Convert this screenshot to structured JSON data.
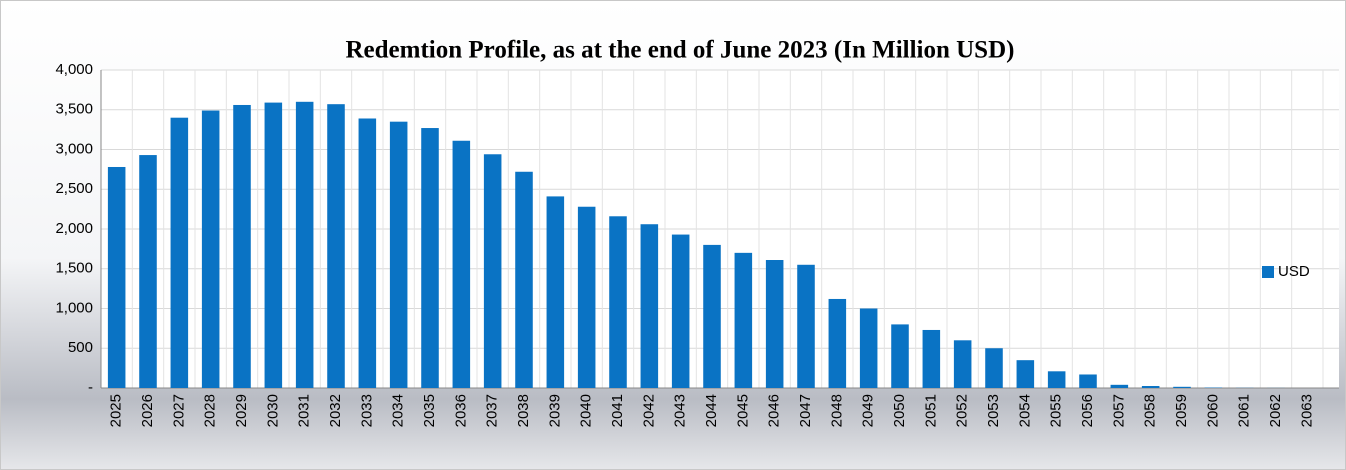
{
  "chart_data": {
    "type": "bar",
    "title": "Redemtion Profile, as at the end of June 2023 (In Million USD)",
    "categories": [
      "2025",
      "2026",
      "2027",
      "2028",
      "2029",
      "2030",
      "2031",
      "2032",
      "2033",
      "2034",
      "2035",
      "2036",
      "2037",
      "2038",
      "2039",
      "2040",
      "2041",
      "2042",
      "2043",
      "2044",
      "2045",
      "2046",
      "2047",
      "2048",
      "2049",
      "2050",
      "2051",
      "2052",
      "2053",
      "2054",
      "2055",
      "2056",
      "2057",
      "2058",
      "2059",
      "2060",
      "2061",
      "2062",
      "2063"
    ],
    "series": [
      {
        "name": "USD",
        "color": "#0a73c4",
        "values": [
          2780,
          2930,
          3400,
          3490,
          3560,
          3590,
          3600,
          3570,
          3390,
          3350,
          3270,
          3110,
          2940,
          2720,
          2410,
          2280,
          2160,
          2060,
          1930,
          1800,
          1700,
          1610,
          1550,
          1120,
          1000,
          800,
          730,
          600,
          500,
          350,
          210,
          170,
          40,
          25,
          15,
          5,
          2,
          1,
          0
        ]
      }
    ],
    "ylim": [
      0,
      4000
    ],
    "yticks": [
      {
        "value": 0,
        "label": "-"
      },
      500,
      {
        "value": 1000,
        "label": "1,000"
      },
      {
        "value": 1500,
        "label": "1,500"
      },
      {
        "value": 2000,
        "label": "2,000"
      },
      {
        "value": 2500,
        "label": "2,500"
      },
      {
        "value": 3000,
        "label": "3,000"
      },
      {
        "value": 3500,
        "label": "3,500"
      },
      {
        "value": 4000,
        "label": "4,000"
      }
    ],
    "grid": true,
    "legend": "right"
  }
}
